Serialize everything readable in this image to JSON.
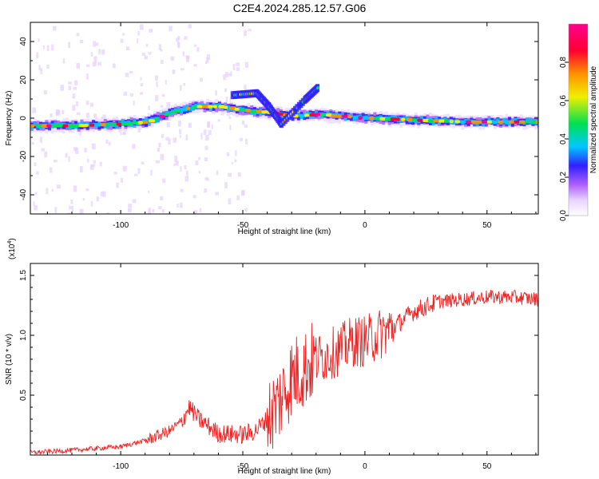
{
  "figure": {
    "title": "C2E4.2024.285.12.57.G06"
  },
  "colors": {
    "background": "#ffffff",
    "snr_line": "#ee2222",
    "colormap": [
      "#ffffff",
      "#e8d4ff",
      "#b060ff",
      "#3020ff",
      "#00c8ff",
      "#00e050",
      "#f0f000",
      "#ff9000",
      "#ff0030",
      "#ff0090"
    ]
  },
  "chart_data": [
    {
      "type": "heatmap",
      "title": "C2E4.2024.285.12.57.G06",
      "xlabel": "Height of straight line (km)",
      "ylabel": "Frequency (Hz)",
      "xlim": [
        -137,
        71
      ],
      "ylim": [
        -50,
        50
      ],
      "xticks": [
        -100,
        -50,
        0,
        50
      ],
      "xtick_labels": [
        "-100",
        "-50",
        "0",
        "50"
      ],
      "yticks": [
        -40,
        -20,
        0,
        20,
        40
      ],
      "ytick_labels": [
        "-40",
        "-20",
        "0",
        "20",
        "40"
      ],
      "colorbar": {
        "label": "Normalized spectral amplitude",
        "range": [
          0,
          1
        ],
        "ticks": [
          0.0,
          0.2,
          0.4,
          0.6,
          0.8
        ],
        "tick_labels": [
          "0.0",
          "0.2",
          "0.4",
          "0.6",
          "0.8"
        ]
      },
      "ridge": {
        "description_points": [
          {
            "x": -137,
            "f": -4
          },
          {
            "x": -120,
            "f": -4
          },
          {
            "x": -100,
            "f": -3
          },
          {
            "x": -90,
            "f": -2
          },
          {
            "x": -80,
            "f": 3
          },
          {
            "x": -70,
            "f": 6
          },
          {
            "x": -60,
            "f": 6
          },
          {
            "x": -50,
            "f": 4
          },
          {
            "x": -40,
            "f": 3
          },
          {
            "x": -30,
            "f": 1
          },
          {
            "x": -20,
            "f": 2
          },
          {
            "x": -10,
            "f": 1
          },
          {
            "x": 0,
            "f": 0
          },
          {
            "x": 20,
            "f": -1
          },
          {
            "x": 40,
            "f": -2
          },
          {
            "x": 71,
            "f": -2
          }
        ],
        "secondary_branch": [
          {
            "x": -55,
            "f": 12
          },
          {
            "x": -45,
            "f": 13
          },
          {
            "x": -40,
            "f": 6
          },
          {
            "x": -35,
            "f": -3
          },
          {
            "x": -25,
            "f": 10
          },
          {
            "x": -20,
            "f": 16
          }
        ]
      }
    },
    {
      "type": "line",
      "xlabel": "Height of straight line (km)",
      "ylabel": "SNR (10 * v/v)",
      "y_multiplier": "(x10^4)",
      "xlim": [
        -137,
        71
      ],
      "ylim": [
        0,
        1.6
      ],
      "xticks": [
        -100,
        -50,
        0,
        50
      ],
      "xtick_labels": [
        "-100",
        "-50",
        "0",
        "50"
      ],
      "yticks": [
        0.5,
        1.0,
        1.5
      ],
      "ytick_labels": [
        "0.5",
        "1.0",
        "1.5"
      ],
      "series": [
        {
          "trend": [
            [
              -137,
              0.02
            ],
            [
              -120,
              0.04
            ],
            [
              -100,
              0.07
            ],
            [
              -90,
              0.12
            ],
            [
              -80,
              0.2
            ],
            [
              -75,
              0.28
            ],
            [
              -72,
              0.4
            ],
            [
              -68,
              0.3
            ],
            [
              -60,
              0.18
            ],
            [
              -50,
              0.17
            ],
            [
              -45,
              0.2
            ],
            [
              -40,
              0.3
            ],
            [
              -35,
              0.45
            ],
            [
              -30,
              0.65
            ],
            [
              -25,
              0.72
            ],
            [
              -20,
              0.8
            ],
            [
              -10,
              0.88
            ],
            [
              -5,
              0.95
            ],
            [
              0,
              0.95
            ],
            [
              5,
              1.0
            ],
            [
              10,
              1.05
            ],
            [
              15,
              1.12
            ],
            [
              20,
              1.2
            ],
            [
              30,
              1.28
            ],
            [
              40,
              1.3
            ],
            [
              50,
              1.32
            ],
            [
              60,
              1.32
            ],
            [
              71,
              1.3
            ]
          ]
        }
      ]
    }
  ],
  "labels": {
    "heatmap_xlabel": "Height of straight line (km)",
    "heatmap_ylabel": "Frequency (Hz)",
    "colorbar_label": "Normalized spectral amplitude",
    "snr_xlabel": "Height of straight line (km)",
    "snr_ylabel": "SNR (10 * v/v)",
    "snr_multiplier_base": "(x10",
    "snr_multiplier_exp": "4",
    "snr_multiplier_close": ")"
  }
}
